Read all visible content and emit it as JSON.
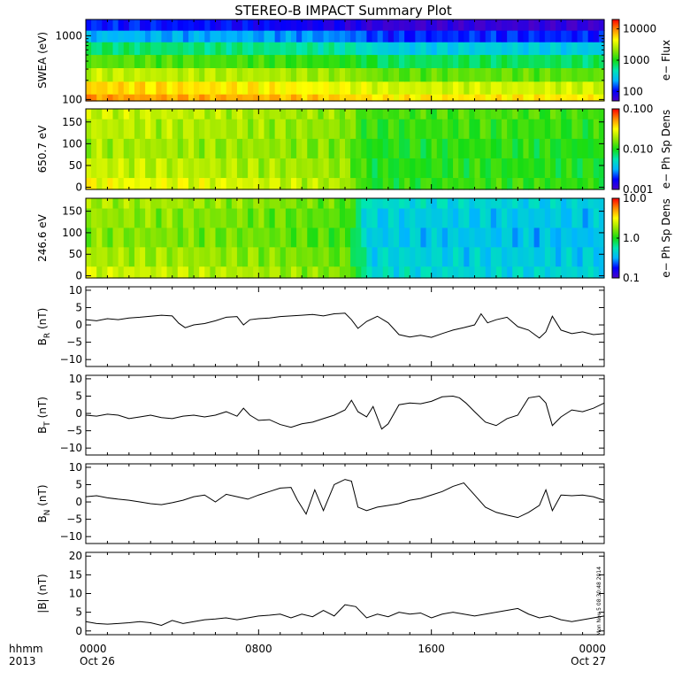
{
  "title": "STEREO-B IMPACT Summary Plot",
  "footer": {
    "left_top": "hhmm",
    "left_bottom": "2013",
    "stamp": "Mon Nov  5 08:30:48 2014"
  },
  "x_axis": {
    "range_hours": [
      0,
      24
    ],
    "ticks": [
      {
        "hour": 0,
        "top": "0000",
        "bottom": "Oct 26"
      },
      {
        "hour": 8,
        "top": "0800",
        "bottom": ""
      },
      {
        "hour": 16,
        "top": "1600",
        "bottom": ""
      },
      {
        "hour": 24,
        "top": "0000",
        "bottom": "Oct 27"
      }
    ]
  },
  "colors": {
    "axis": "#000000",
    "line": "#000000",
    "colormap": [
      "#4b00c8",
      "#0000ff",
      "#00b4ff",
      "#00e6b4",
      "#14dc14",
      "#96e600",
      "#ffff00",
      "#ff8c00",
      "#ff0000"
    ]
  },
  "chart_data": [
    {
      "id": "swea",
      "type": "heatmap",
      "ylabel": "SWEA (eV)",
      "ylog": true,
      "ylim": [
        95,
        1800
      ],
      "yticks": [
        {
          "v": 100,
          "label": "100"
        },
        {
          "v": 1000,
          "label": "1000"
        }
      ],
      "colorbar": {
        "label": "e− Flux",
        "log": true,
        "range": [
          50,
          20000
        ],
        "ticks": [
          {
            "v": 100,
            "label": "100"
          },
          {
            "v": 1000,
            "label": "1000"
          },
          {
            "v": 10000,
            "label": "10000"
          }
        ]
      },
      "energies": [
        100,
        150,
        250,
        400,
        650,
        1000,
        1500
      ],
      "times": [
        0,
        4,
        8,
        12,
        14,
        18,
        24
      ],
      "values": [
        [
          9000,
          8000,
          7500,
          6000,
          5000,
          5200,
          5000
        ],
        [
          6000,
          5500,
          5000,
          4000,
          3200,
          3300,
          3200
        ],
        [
          3000,
          2800,
          2600,
          2200,
          1500,
          1600,
          1500
        ],
        [
          1500,
          1400,
          1300,
          1100,
          700,
          750,
          700
        ],
        [
          700,
          650,
          600,
          500,
          300,
          320,
          300
        ],
        [
          250,
          230,
          220,
          180,
          120,
          125,
          120
        ],
        [
          120,
          110,
          100,
          80,
          60,
          62,
          60
        ]
      ]
    },
    {
      "id": "pad650",
      "type": "heatmap",
      "ylabel": "650.7 eV",
      "ylog": false,
      "ylim": [
        -5,
        180
      ],
      "yticks": [
        {
          "v": 0,
          "label": "0"
        },
        {
          "v": 50,
          "label": "50"
        },
        {
          "v": 100,
          "label": "100"
        },
        {
          "v": 150,
          "label": "150"
        }
      ],
      "colorbar": {
        "label": "e− Ph Sp Dens",
        "log": true,
        "range": [
          0.001,
          0.1
        ],
        "ticks": [
          {
            "v": 0.001,
            "label": "0.001"
          },
          {
            "v": 0.01,
            "label": "0.010"
          },
          {
            "v": 0.1,
            "label": "0.100"
          }
        ]
      },
      "angles": [
        0,
        45,
        90,
        135,
        180
      ],
      "times": [
        0,
        4,
        8,
        12,
        13,
        18,
        24
      ],
      "values": [
        [
          0.03,
          0.028,
          0.025,
          0.02,
          0.01,
          0.012,
          0.011
        ],
        [
          0.024,
          0.022,
          0.02,
          0.018,
          0.01,
          0.011,
          0.01
        ],
        [
          0.02,
          0.019,
          0.018,
          0.016,
          0.01,
          0.011,
          0.01
        ],
        [
          0.022,
          0.021,
          0.019,
          0.017,
          0.011,
          0.012,
          0.011
        ],
        [
          0.024,
          0.023,
          0.02,
          0.018,
          0.012,
          0.013,
          0.012
        ]
      ]
    },
    {
      "id": "pad246",
      "type": "heatmap",
      "ylabel": "246.6 eV",
      "ylog": false,
      "ylim": [
        -5,
        180
      ],
      "yticks": [
        {
          "v": 0,
          "label": "0"
        },
        {
          "v": 50,
          "label": "50"
        },
        {
          "v": 100,
          "label": "100"
        },
        {
          "v": 150,
          "label": "150"
        }
      ],
      "colorbar": {
        "label": "e− Ph Sp Dens",
        "log": true,
        "range": [
          0.1,
          10
        ],
        "ticks": [
          {
            "v": 0.1,
            "label": "0.1"
          },
          {
            "v": 1,
            "label": "1.0"
          },
          {
            "v": 10,
            "label": "10.0"
          }
        ]
      },
      "angles": [
        0,
        45,
        90,
        135,
        180
      ],
      "times": [
        0,
        4,
        8,
        12,
        13,
        18,
        24
      ],
      "values": [
        [
          2.5,
          2.3,
          2.0,
          1.6,
          0.5,
          0.45,
          0.45
        ],
        [
          2.0,
          1.9,
          1.7,
          1.4,
          0.45,
          0.42,
          0.4
        ],
        [
          1.7,
          1.6,
          1.5,
          1.2,
          0.4,
          0.38,
          0.35
        ],
        [
          1.8,
          1.7,
          1.5,
          1.3,
          0.42,
          0.4,
          0.38
        ],
        [
          2.0,
          1.9,
          1.7,
          1.4,
          0.5,
          0.45,
          0.42
        ]
      ]
    },
    {
      "id": "br",
      "type": "line",
      "ylabel": "B",
      "ylabel_sub": "R",
      "ylabel_unit": " (nT)",
      "ylim": [
        -12,
        11
      ],
      "yticks": [
        {
          "v": -10,
          "label": "−10"
        },
        {
          "v": -5,
          "label": "−5"
        },
        {
          "v": 0,
          "label": "0"
        },
        {
          "v": 5,
          "label": "5"
        },
        {
          "v": 10,
          "label": "10"
        }
      ],
      "x": [
        0,
        0.5,
        1,
        1.5,
        2,
        2.5,
        3,
        3.5,
        4,
        4.3,
        4.6,
        5,
        5.5,
        6,
        6.5,
        7,
        7.3,
        7.6,
        8,
        8.5,
        9,
        9.5,
        10,
        10.5,
        11,
        11.5,
        12,
        12.3,
        12.6,
        13,
        13.5,
        14,
        14.5,
        15,
        15.5,
        16,
        16.5,
        17,
        17.5,
        18,
        18.3,
        18.6,
        19,
        19.5,
        20,
        20.5,
        21,
        21.3,
        21.6,
        22,
        22.5,
        23,
        23.5,
        24
      ],
      "values": [
        1.5,
        1.2,
        1.8,
        1.5,
        2.0,
        2.2,
        2.5,
        2.8,
        2.6,
        0.5,
        -0.8,
        0.0,
        0.4,
        1.2,
        2.2,
        2.4,
        0.0,
        1.5,
        1.8,
        2.0,
        2.4,
        2.6,
        2.8,
        3.0,
        2.6,
        3.2,
        3.4,
        1.5,
        -1.0,
        1.0,
        2.5,
        0.6,
        -2.8,
        -3.5,
        -3.0,
        -3.6,
        -2.5,
        -1.5,
        -0.8,
        0.0,
        3.2,
        0.6,
        1.5,
        2.2,
        -0.5,
        -1.5,
        -3.8,
        -2.0,
        2.5,
        -1.5,
        -2.5,
        -2.0,
        -2.8,
        -2.5
      ]
    },
    {
      "id": "bt",
      "type": "line",
      "ylabel": "B",
      "ylabel_sub": "T",
      "ylabel_unit": " (nT)",
      "ylim": [
        -12,
        11
      ],
      "yticks": [
        {
          "v": -10,
          "label": "−10"
        },
        {
          "v": -5,
          "label": "−5"
        },
        {
          "v": 0,
          "label": "0"
        },
        {
          "v": 5,
          "label": "5"
        },
        {
          "v": 10,
          "label": "10"
        }
      ],
      "x": [
        0,
        0.5,
        1,
        1.5,
        2,
        2.5,
        3,
        3.5,
        4,
        4.5,
        5,
        5.5,
        6,
        6.5,
        7,
        7.3,
        7.6,
        8,
        8.5,
        9,
        9.5,
        10,
        10.5,
        11,
        11.5,
        12,
        12.3,
        12.6,
        13,
        13.3,
        13.7,
        14,
        14.5,
        15,
        15.5,
        16,
        16.5,
        17,
        17.3,
        17.6,
        18,
        18.5,
        19,
        19.5,
        20,
        20.5,
        21,
        21.3,
        21.6,
        22,
        22.5,
        23,
        23.5,
        24
      ],
      "values": [
        -0.5,
        -0.8,
        -0.2,
        -0.5,
        -1.5,
        -1.0,
        -0.5,
        -1.2,
        -1.5,
        -0.8,
        -0.5,
        -1.0,
        -0.5,
        0.5,
        -0.8,
        1.5,
        -0.5,
        -2.0,
        -1.8,
        -3.2,
        -4.0,
        -3.0,
        -2.5,
        -1.5,
        -0.5,
        1.0,
        3.8,
        0.5,
        -1.0,
        2.0,
        -4.5,
        -3.0,
        2.5,
        3.0,
        2.8,
        3.5,
        4.8,
        5.0,
        4.5,
        3.0,
        0.5,
        -2.5,
        -3.5,
        -1.5,
        -0.5,
        4.5,
        5.0,
        3.0,
        -3.5,
        -1.0,
        1.0,
        0.5,
        1.5,
        3.0
      ]
    },
    {
      "id": "bn",
      "type": "line",
      "ylabel": "B",
      "ylabel_sub": "N",
      "ylabel_unit": " (nT)",
      "ylim": [
        -12,
        11
      ],
      "yticks": [
        {
          "v": -10,
          "label": "−10"
        },
        {
          "v": -5,
          "label": "−5"
        },
        {
          "v": 0,
          "label": "0"
        },
        {
          "v": 5,
          "label": "5"
        },
        {
          "v": 10,
          "label": "10"
        }
      ],
      "x": [
        0,
        0.5,
        1,
        1.5,
        2,
        2.5,
        3,
        3.5,
        4,
        4.5,
        5,
        5.5,
        6,
        6.5,
        7,
        7.5,
        8,
        8.5,
        9,
        9.5,
        9.8,
        10.2,
        10.6,
        11,
        11.5,
        12,
        12.3,
        12.6,
        13,
        13.5,
        14,
        14.5,
        15,
        15.5,
        16,
        16.5,
        17,
        17.5,
        18,
        18.5,
        19,
        19.5,
        20,
        20.5,
        21,
        21.3,
        21.6,
        22,
        22.5,
        23,
        23.5,
        24
      ],
      "values": [
        1.5,
        1.8,
        1.2,
        0.8,
        0.5,
        0.0,
        -0.5,
        -0.8,
        -0.2,
        0.5,
        1.5,
        2.0,
        0.0,
        2.2,
        1.5,
        0.8,
        2.0,
        3.0,
        4.0,
        4.2,
        0.5,
        -3.5,
        3.5,
        -2.5,
        5.0,
        6.5,
        6.0,
        -1.5,
        -2.5,
        -1.5,
        -1.0,
        -0.5,
        0.5,
        1.0,
        2.0,
        3.0,
        4.5,
        5.5,
        2.0,
        -1.5,
        -3.0,
        -3.8,
        -4.5,
        -3.0,
        -1.0,
        3.5,
        -2.5,
        2.0,
        1.8,
        2.0,
        1.5,
        0.5
      ]
    },
    {
      "id": "bmag",
      "type": "line",
      "ylabel": "|B| (nT)",
      "ylim": [
        -1,
        21
      ],
      "yticks": [
        {
          "v": 0,
          "label": "0"
        },
        {
          "v": 5,
          "label": "5"
        },
        {
          "v": 10,
          "label": "10"
        },
        {
          "v": 15,
          "label": "15"
        },
        {
          "v": 20,
          "label": "20"
        }
      ],
      "x": [
        0,
        0.5,
        1,
        1.5,
        2,
        2.5,
        3,
        3.5,
        4,
        4.5,
        5,
        5.5,
        6,
        6.5,
        7,
        7.5,
        8,
        8.5,
        9,
        9.5,
        10,
        10.5,
        11,
        11.5,
        12,
        12.5,
        13,
        13.5,
        14,
        14.5,
        15,
        15.5,
        16,
        16.5,
        17,
        17.5,
        18,
        18.5,
        19,
        19.5,
        20,
        20.5,
        21,
        21.5,
        22,
        22.5,
        23,
        23.5,
        24
      ],
      "values": [
        2.5,
        2.0,
        1.8,
        2.0,
        2.2,
        2.5,
        2.2,
        1.5,
        2.8,
        2.0,
        2.5,
        3.0,
        3.2,
        3.5,
        3.0,
        3.5,
        4.0,
        4.2,
        4.5,
        3.5,
        4.5,
        3.8,
        5.5,
        4.0,
        7.0,
        6.5,
        3.5,
        4.5,
        3.8,
        5.0,
        4.5,
        4.8,
        3.5,
        4.5,
        5.0,
        4.5,
        4.0,
        4.5,
        5.0,
        5.5,
        6.0,
        4.5,
        3.5,
        4.0,
        3.0,
        2.5,
        3.0,
        3.5,
        4.0
      ]
    }
  ]
}
